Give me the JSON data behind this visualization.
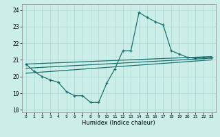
{
  "xlabel": "Humidex (Indice chaleur)",
  "bg_color": "#cceee8",
  "grid_color": "#aad8d3",
  "line_color": "#1a7070",
  "xlim": [
    -0.5,
    23.5
  ],
  "ylim": [
    17.85,
    24.35
  ],
  "yticks": [
    18,
    19,
    20,
    21,
    22,
    23,
    24
  ],
  "xticks": [
    0,
    1,
    2,
    3,
    4,
    5,
    6,
    7,
    8,
    9,
    10,
    11,
    12,
    13,
    14,
    15,
    16,
    17,
    18,
    19,
    20,
    21,
    22,
    23
  ],
  "main_x": [
    0,
    1,
    2,
    3,
    4,
    5,
    6,
    7,
    8,
    9,
    10,
    11,
    12,
    13,
    14,
    15,
    16,
    17,
    18,
    19,
    20,
    21,
    22,
    23
  ],
  "main_y": [
    20.75,
    20.3,
    20.0,
    19.8,
    19.65,
    19.1,
    18.85,
    18.85,
    18.45,
    18.45,
    19.6,
    20.45,
    21.55,
    21.55,
    23.85,
    23.55,
    23.3,
    23.1,
    21.55,
    21.35,
    21.15,
    21.1,
    21.15,
    21.15
  ],
  "line1_x": [
    0,
    23
  ],
  "line1_y": [
    20.75,
    21.2
  ],
  "line2_x": [
    0,
    23
  ],
  "line2_y": [
    20.5,
    21.1
  ],
  "line3_x": [
    0,
    23
  ],
  "line3_y": [
    20.2,
    21.0
  ]
}
